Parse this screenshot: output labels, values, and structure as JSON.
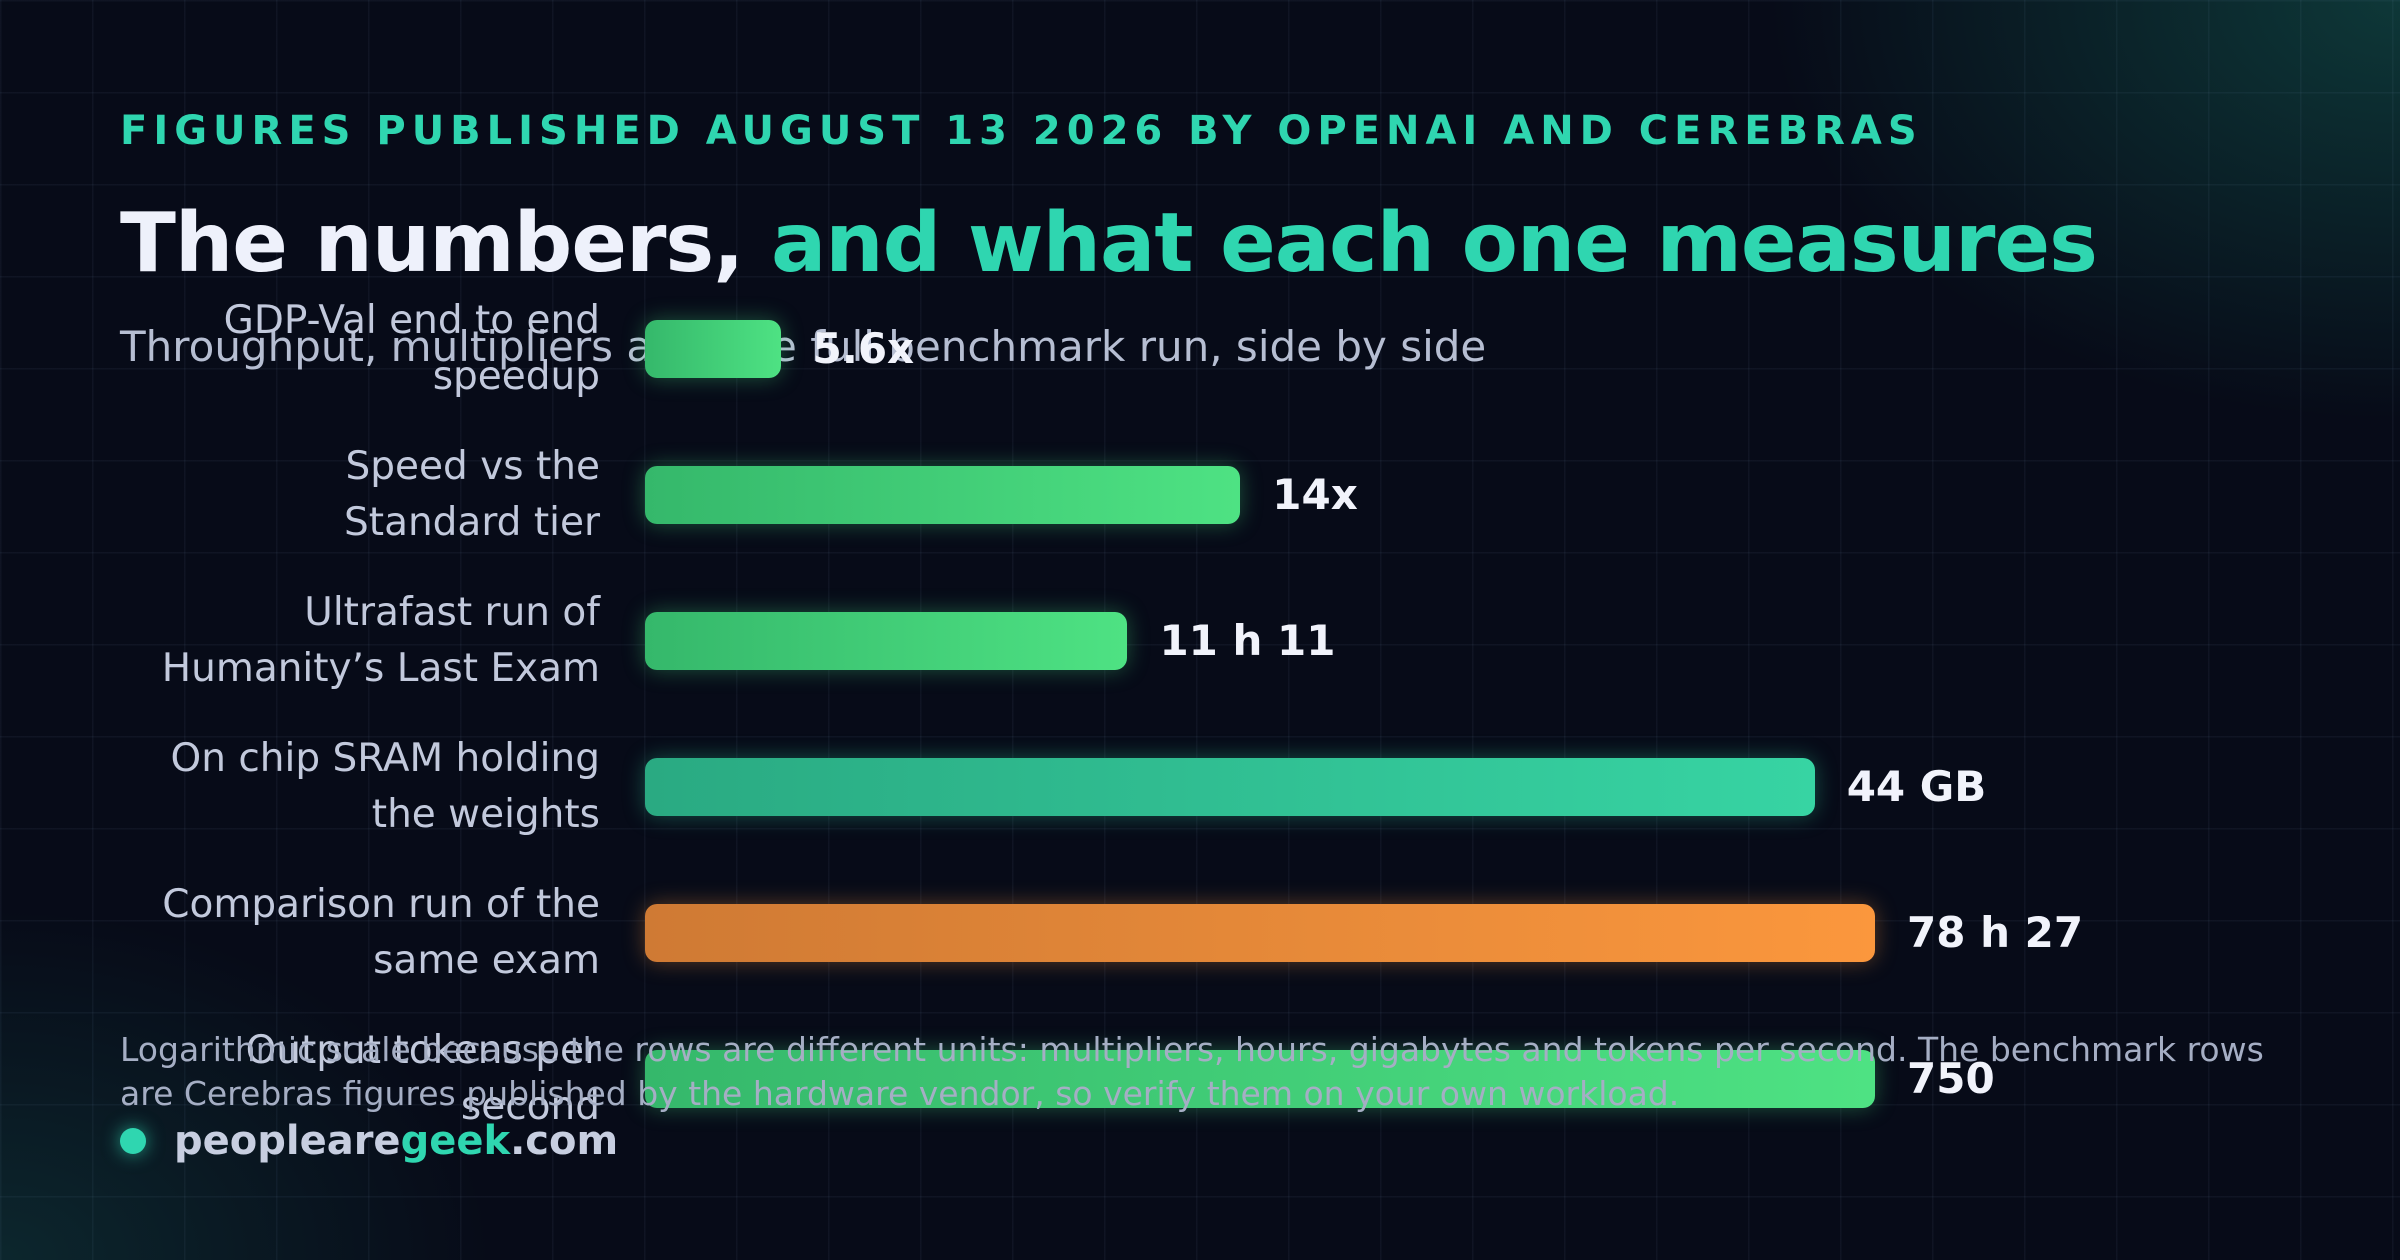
{
  "header": {
    "eyebrow": "FIGURES PUBLISHED AUGUST 13 2026 BY OPENAI AND CEREBRAS",
    "title_main": "The numbers,",
    "title_accent": " and what each one measures",
    "subtitle": "Throughput, multipliers and one full benchmark run, side by side"
  },
  "chart_data": {
    "type": "bar",
    "orientation": "horizontal",
    "scale": "log",
    "categories": [
      "GDP-Val end to end speedup",
      "Speed vs the Standard tier",
      "Ultrafast run of Humanity’s Last Exam",
      "On chip SRAM holding the weights",
      "Comparison run of the same exam",
      "Output tokens per second"
    ],
    "values": [
      5.6,
      14,
      11.18,
      44,
      78.45,
      750
    ],
    "value_labels": [
      "5.6x",
      "14x",
      "11 h 11",
      "44 GB",
      "78 h 27",
      "750"
    ],
    "units": [
      "x",
      "x",
      "hours",
      "GB",
      "hours",
      "tokens per second"
    ],
    "colors": [
      "#4ee283",
      "#4ee283",
      "#4ee283",
      "#37d4a3",
      "#fb973d",
      "#4ee283"
    ],
    "label_lines": [
      "GDP-Val end to end\nspeedup",
      "Speed vs the\nStandard tier",
      "Ultrafast run of\nHumanity’s Last Exam",
      "On chip SRAM holding\nthe weights",
      "Comparison run of the\nsame exam",
      "Output tokens per\nsecond"
    ],
    "legend": "none",
    "grid": false
  },
  "footer": {
    "note": "Logarithmic scale because the rows are different units: multipliers, hours, gigabytes and tokens per second. The benchmark rows are Cerebras figures published by the hardware vendor, so verify them on your own workload.",
    "brand_prefix": "peopleare",
    "brand_accent": "geek",
    "brand_suffix": ".com"
  }
}
